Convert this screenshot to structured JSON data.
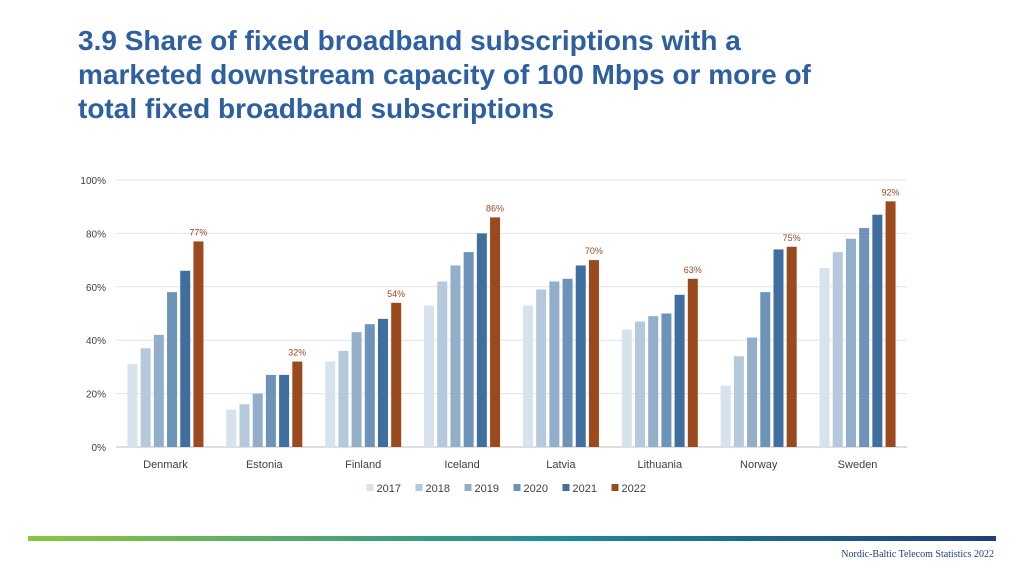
{
  "page": {
    "title_lines": [
      "3.9 Share of fixed broadband subscriptions with a",
      "marketed downstream capacity of 100 Mbps or more of",
      "total fixed broadband subscriptions"
    ],
    "source": "Nordic-Baltic Telecom Statistics 2022"
  },
  "colors": {
    "title": "#2E5FA1",
    "series": [
      "#D6E2EC",
      "#B5C9DC",
      "#93AEC9",
      "#6E93B8",
      "#3F6E9F",
      "#9B4A1E"
    ],
    "label": "#9B4A1E",
    "footer_gradient": [
      "#8CC63F",
      "#1F8A9A",
      "#1F3E78"
    ]
  },
  "chart_data": {
    "type": "bar",
    "title": "",
    "xlabel": "",
    "ylabel": "",
    "categories": [
      "Denmark",
      "Estonia",
      "Finland",
      "Iceland",
      "Latvia",
      "Lithuania",
      "Norway",
      "Sweden"
    ],
    "series": [
      {
        "name": "2017",
        "values": [
          31,
          14,
          32,
          53,
          53,
          44,
          23,
          67
        ]
      },
      {
        "name": "2018",
        "values": [
          37,
          16,
          36,
          62,
          59,
          47,
          34,
          73
        ]
      },
      {
        "name": "2019",
        "values": [
          42,
          20,
          43,
          68,
          62,
          49,
          41,
          78
        ]
      },
      {
        "name": "2020",
        "values": [
          58,
          27,
          46,
          73,
          63,
          50,
          58,
          82
        ]
      },
      {
        "name": "2021",
        "values": [
          66,
          27,
          48,
          80,
          68,
          57,
          74,
          87
        ]
      },
      {
        "name": "2022",
        "values": [
          77,
          32,
          54,
          86,
          70,
          63,
          75,
          92
        ]
      }
    ],
    "data_labels_series": "2022",
    "data_labels": [
      "77%",
      "32%",
      "54%",
      "86%",
      "70%",
      "63%",
      "75%",
      "92%"
    ],
    "ylim": [
      0,
      100
    ],
    "yticks": [
      0,
      20,
      40,
      60,
      80,
      100
    ],
    "ytick_labels": [
      "0%",
      "20%",
      "40%",
      "60%",
      "80%",
      "100%"
    ],
    "grid": true,
    "legend": "bottom"
  }
}
